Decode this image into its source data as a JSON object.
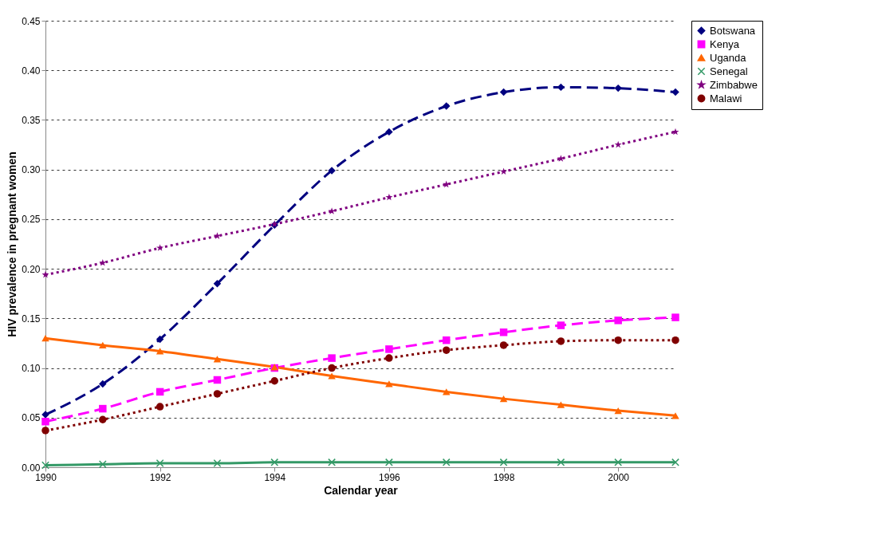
{
  "chart_data": {
    "type": "line",
    "xlabel": "Calendar year",
    "ylabel": "HIV prevalence in pregnant women",
    "x": [
      1990,
      1991,
      1992,
      1993,
      1994,
      1995,
      1996,
      1997,
      1998,
      1999,
      2000,
      2001
    ],
    "xlim": [
      1990,
      2001
    ],
    "xticks": [
      1990,
      1992,
      1994,
      1996,
      1998,
      2000
    ],
    "ylim": [
      0,
      0.45
    ],
    "yticks": [
      {
        "value": 0,
        "label": "0.00"
      },
      {
        "value": 0.05,
        "label": "0.05"
      },
      {
        "value": 0.1,
        "label": "0.10"
      },
      {
        "value": 0.15,
        "label": "0.15"
      },
      {
        "value": 0.2,
        "label": "0.20"
      },
      {
        "value": 0.25,
        "label": "0.25"
      },
      {
        "value": 0.3,
        "label": "0.30"
      },
      {
        "value": 0.35,
        "label": "0.35"
      },
      {
        "value": 0.4,
        "label": "0.40"
      },
      {
        "value": 0.45,
        "label": "0.45"
      }
    ],
    "grid": "y",
    "legend": "right",
    "series": [
      {
        "name": "Botswana",
        "color": "#000080",
        "marker": "diamond",
        "line_style": "dashed",
        "values": [
          0.053,
          0.084,
          0.129,
          0.185,
          0.244,
          0.299,
          0.338,
          0.364,
          0.378,
          0.383,
          0.382,
          0.378
        ]
      },
      {
        "name": "Kenya",
        "color": "#ff00ff",
        "marker": "square",
        "line_style": "dashed",
        "values": [
          0.046,
          0.059,
          0.076,
          0.088,
          0.1,
          0.11,
          0.119,
          0.128,
          0.136,
          0.143,
          0.148,
          0.151
        ]
      },
      {
        "name": "Uganda",
        "color": "#ff6600",
        "marker": "triangle",
        "line_style": "solid",
        "values": [
          0.13,
          0.123,
          0.117,
          0.109,
          0.101,
          0.092,
          0.084,
          0.076,
          0.069,
          0.063,
          0.057,
          0.052
        ]
      },
      {
        "name": "Senegal",
        "color": "#339966",
        "marker": "cross",
        "line_style": "solid",
        "values": [
          0.002,
          0.003,
          0.004,
          0.004,
          0.005,
          0.005,
          0.005,
          0.005,
          0.005,
          0.005,
          0.005,
          0.005
        ]
      },
      {
        "name": "Zimbabwe",
        "color": "#800080",
        "marker": "star",
        "line_style": "dotted",
        "values": [
          0.194,
          0.206,
          0.221,
          0.233,
          0.245,
          0.258,
          0.272,
          0.285,
          0.298,
          0.311,
          0.325,
          0.338
        ]
      },
      {
        "name": "Malawi",
        "color": "#800000",
        "marker": "circle",
        "line_style": "dotted",
        "values": [
          0.037,
          0.048,
          0.061,
          0.074,
          0.087,
          0.1,
          0.11,
          0.118,
          0.123,
          0.127,
          0.128,
          0.128
        ]
      }
    ]
  }
}
